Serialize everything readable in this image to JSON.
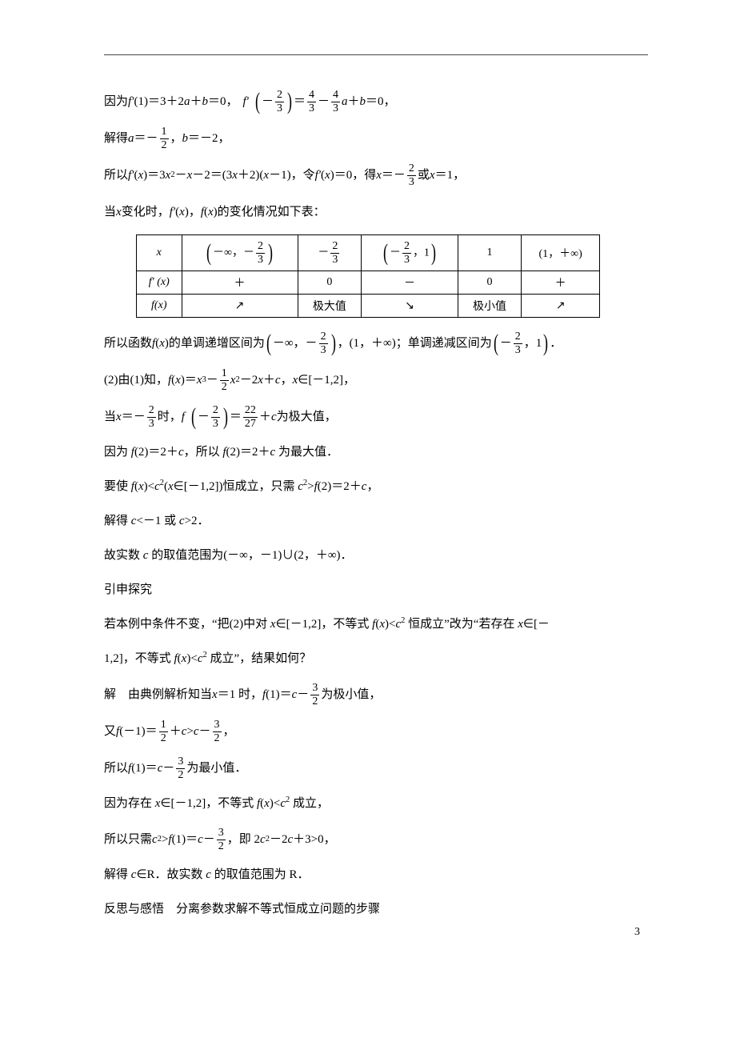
{
  "page": {
    "number": "3",
    "text_color": "#000000",
    "background_color": "#ffffff",
    "body_fontsize": 15,
    "font_family": "SimSun, 宋体, serif"
  },
  "lines": {
    "l1a": "因为 ",
    "l1_fp": "f′",
    "l1b": " (1)＝3＋2",
    "l1_a": "a",
    "l1c": "＋",
    "l1_bv": "b",
    "l1d": "＝0，",
    "l1_fp2": "f′",
    "l1_lp": "(",
    "l1_neg": "－",
    "l1_rp": ")",
    "l1_eq": "＝",
    "l1_minus": "－",
    "l1_a2": "a",
    "l1_plus": "＋",
    "l1_bv2": "b",
    "l1_eq0": "＝0，",
    "l2a": "解得 ",
    "l2_a": "a",
    "l2_eq": "＝－",
    "l2_c": "，",
    "l2_b": "b",
    "l2_eqm2": "＝－2，",
    "l3a": "所以 ",
    "l3_fp": "f′",
    "l3b": " (",
    "l3_x": "x",
    "l3c": ")＝3",
    "l3_x2": "x",
    "l3_sq": "2",
    "l3d": "－",
    "l3_x3": "x",
    "l3e": "－2＝(3",
    "l3_x4": "x",
    "l3f": "＋2)(",
    "l3_x5": "x",
    "l3g": "－1)，令 ",
    "l3_fp2": "f′",
    "l3h": " (",
    "l3_x6": "x",
    "l3i": ")＝0，得 ",
    "l3_x7": "x",
    "l3j": "＝－",
    "l3k": "或 ",
    "l3_x8": "x",
    "l3l": "＝1，",
    "l4a": "当 ",
    "l4_x": "x",
    "l4b": " 变化时，",
    "l4_fp": "f′",
    "l4c": " (",
    "l4_x2": "x",
    "l4d": ")，",
    "l4_f": "f",
    "l4e": "(",
    "l4_x3": "x",
    "l4f": ")的变化情况如下表：",
    "l5a": "所以函数 ",
    "l5_f": "f",
    "l5b": "(",
    "l5_x": "x",
    "l5c": ")的单调递增区间为",
    "l5d": "－∞，－",
    "l5e": "，(1，＋∞)；单调递减区间为",
    "l5f": "－",
    "l5g": "，1",
    "l5h": "．",
    "l6a": "(2)由(1)知，",
    "l6_f": "f",
    "l6b": "(",
    "l6_x": "x",
    "l6c": ")＝",
    "l6_x2": "x",
    "l6_cub": "3",
    "l6d": "－",
    "l6_x3": "x",
    "l6_sq": "2",
    "l6e": "－2",
    "l6_x4": "x",
    "l6f": "＋",
    "l6_c": "c",
    "l6g": "，",
    "l6_x5": "x",
    "l6h": "∈[－1,2]，",
    "l7a": "当 ",
    "l7_x": "x",
    "l7b": "＝－",
    "l7c": "时，",
    "l7_f": "f",
    "l7_lp": "(",
    "l7_neg": "－",
    "l7_rp": ")",
    "l7d": "＝",
    "l7e": "＋",
    "l7_c": "c",
    "l7f": " 为极大值，",
    "l8a": "因为 ",
    "l8_f": "f",
    "l8b": "(2)＝2＋",
    "l8_c": "c",
    "l8c": "，所以 ",
    "l8_f2": "f",
    "l8d": "(2)＝2＋",
    "l8_c2": "c",
    "l8e": " 为最大值．",
    "l9a": "要使 ",
    "l9_f": "f",
    "l9b": "(",
    "l9_x": "x",
    "l9c": ")<",
    "l9_cv": "c",
    "l9_sq": "2",
    "l9d": "(",
    "l9_x2": "x",
    "l9e": "∈[－1,2])恒成立，只需 ",
    "l9_cv2": "c",
    "l9_sq2": "2",
    "l9f": ">",
    "l9_f2": "f",
    "l9g": "(2)＝2＋",
    "l9_cv3": "c",
    "l9h": "，",
    "l10a": "解得 ",
    "l10_c": "c",
    "l10b": "<－1 或 ",
    "l10_c2": "c",
    "l10c": ">2．",
    "l11a": "故实数 ",
    "l11_c": "c",
    "l11b": " 的取值范围为(－∞，－1)∪(2，＋∞)．",
    "l12": "引申探究",
    "l13a": "若本例中条件不变，“把(2)中对 ",
    "l13_x": "x",
    "l13b": "∈[－1,2]，不等式 ",
    "l13_f": "f",
    "l13c": "(",
    "l13_x2": "x",
    "l13d": ")<",
    "l13_cv": "c",
    "l13_sq": "2",
    "l13e": " 恒成立”改为“若存在 ",
    "l13_x3": "x",
    "l13f": "∈[－",
    "l14a": "1,2]，不等式 ",
    "l14_f": "f",
    "l14b": "(",
    "l14_x": "x",
    "l14c": ")<",
    "l14_cv": "c",
    "l14_sq": "2",
    "l14d": " 成立”，结果如何？",
    "l15a": "解　由典例解析知当 ",
    "l15_x": "x",
    "l15b": "＝1 时，",
    "l15_f": "f",
    "l15c": "(1)＝",
    "l15_cv": "c",
    "l15d": "－",
    "l15e": "为极小值，",
    "l16a": "又 ",
    "l16_f": "f",
    "l16b": "(－1)＝",
    "l16c": "＋",
    "l16_cv": "c",
    "l16d": ">",
    "l16_cv2": "c",
    "l16e": "－",
    "l16f": "，",
    "l17a": "所以 ",
    "l17_f": "f",
    "l17b": "(1)＝",
    "l17_cv": "c",
    "l17c": "－",
    "l17d": "为最小值．",
    "l18a": "因为存在 ",
    "l18_x": "x",
    "l18b": "∈[－1,2]，不等式 ",
    "l18_f": "f",
    "l18c": "(",
    "l18_x2": "x",
    "l18d": ")<",
    "l18_cv": "c",
    "l18_sq": "2",
    "l18e": " 成立，",
    "l19a": "所以只需 ",
    "l19_cv": "c",
    "l19_sq": "2",
    "l19b": ">",
    "l19_f": "f",
    "l19c": "(1)＝",
    "l19_cv2": "c",
    "l19d": "－",
    "l19e": "，即 2",
    "l19_cv3": "c",
    "l19_sq2": "2",
    "l19f": "－2",
    "l19_cv4": "c",
    "l19g": "＋3>0，",
    "l20a": "解得 ",
    "l20_c": "c",
    "l20b": "∈R．故实数 ",
    "l20_c2": "c",
    "l20c": " 的取值范围为 R．",
    "l21": "反思与感悟　分离参数求解不等式恒成立问题的步骤"
  },
  "fractions": {
    "two_three": {
      "num": "2",
      "den": "3"
    },
    "four_three": {
      "num": "4",
      "den": "3"
    },
    "one_two": {
      "num": "1",
      "den": "2"
    },
    "twentytwo_twentyseven": {
      "num": "22",
      "den": "27"
    },
    "three_two": {
      "num": "3",
      "den": "2"
    }
  },
  "table": {
    "border_color": "#000000",
    "header": [
      "x",
      "interval_neginf",
      "neg_two_three",
      "interval_mid",
      "1",
      "interval_1_inf"
    ],
    "header_display": {
      "x": "x",
      "interval_neginf_pre": "－∞，－",
      "interval_mid_pre": "－",
      "interval_mid_post": "，1",
      "one": "1",
      "interval_1_inf": "(1，＋∞)"
    },
    "row2_label": "f′ (x)",
    "row2": [
      "＋",
      "0",
      "－",
      "0",
      "＋"
    ],
    "row3_label": "f(x)",
    "row3": [
      "↗",
      "极大值",
      "↘",
      "极小值",
      "↗"
    ]
  }
}
